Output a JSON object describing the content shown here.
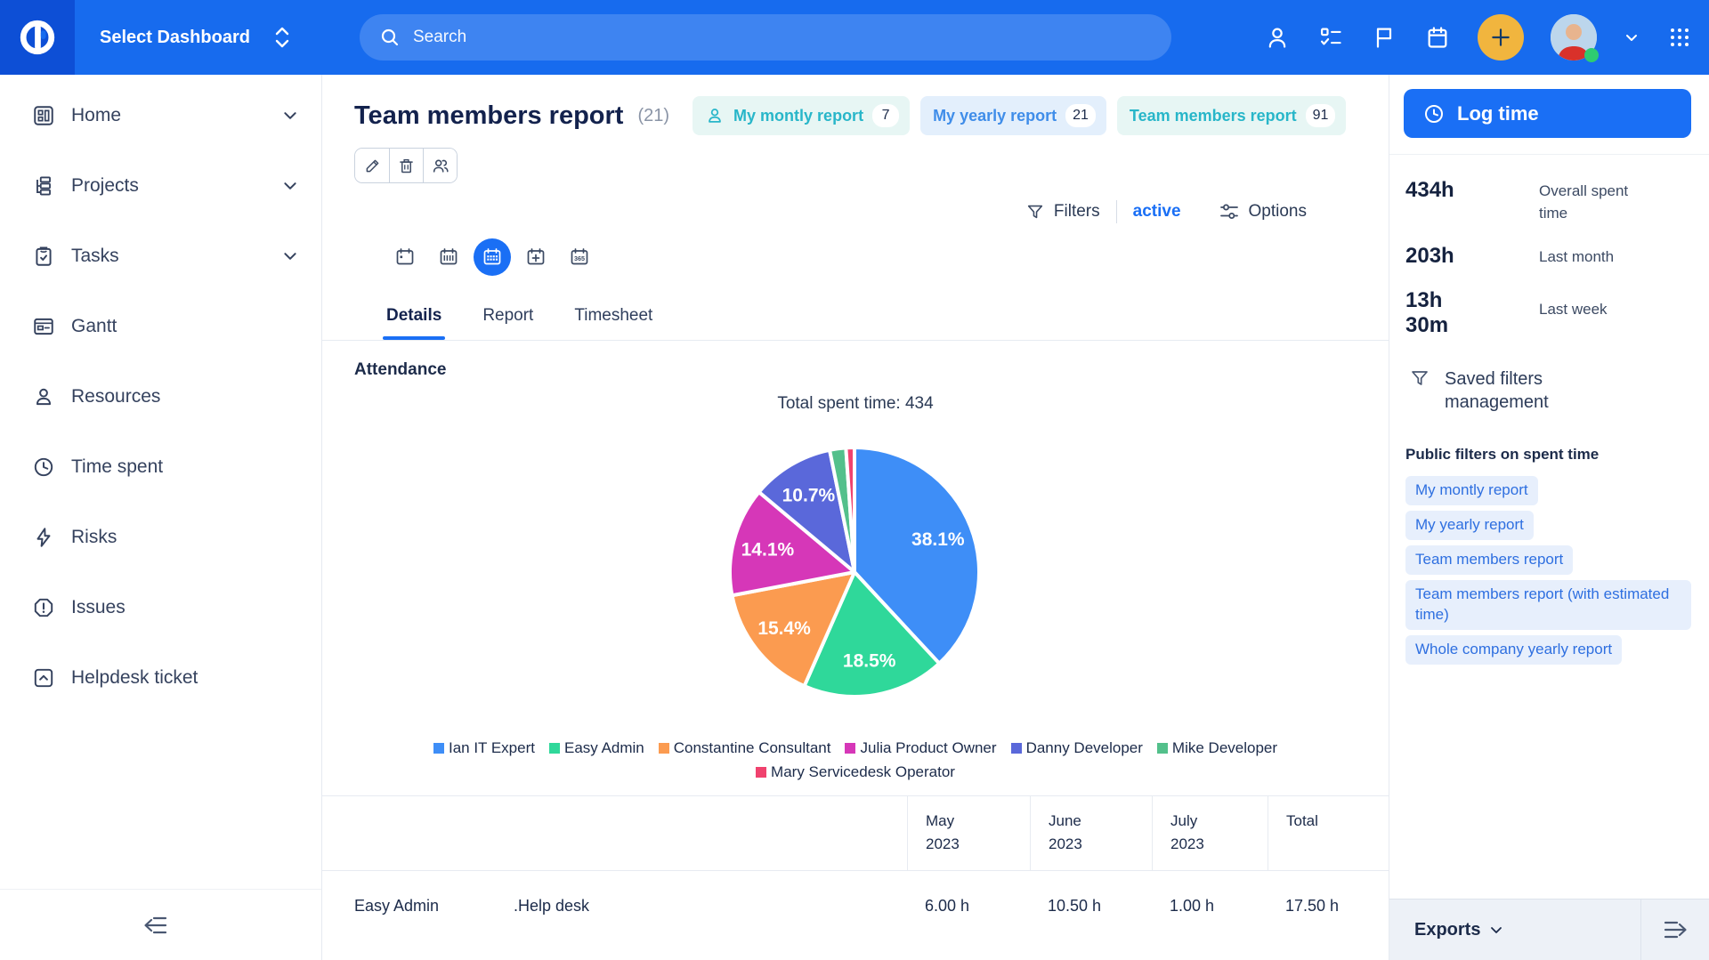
{
  "topbar": {
    "dashboard_selector": "Select Dashboard",
    "search_placeholder": "Search"
  },
  "colors": {
    "topbar_blue": "#176bee",
    "accent_blue": "#1a6ff5",
    "plus_yellow": "#f1b53e",
    "status_green": "#2ecc71",
    "teal_chip": "#28b6c9"
  },
  "sidebar": {
    "items": [
      {
        "label": "Home"
      },
      {
        "label": "Projects"
      },
      {
        "label": "Tasks"
      },
      {
        "label": "Gantt"
      },
      {
        "label": "Resources"
      },
      {
        "label": "Time spent"
      },
      {
        "label": "Risks"
      },
      {
        "label": "Issues"
      },
      {
        "label": "Helpdesk ticket"
      }
    ]
  },
  "page": {
    "title": "Team members report",
    "title_count": "(21)",
    "chips": [
      {
        "label": "My montly report",
        "count": "7"
      },
      {
        "label": "My yearly report",
        "count": "21"
      },
      {
        "label": "Team members report",
        "count": "91"
      }
    ],
    "filters_label": "Filters",
    "filters_state": "active",
    "options_label": "Options",
    "calendar_year_label": "365",
    "tabs": [
      {
        "label": "Details"
      },
      {
        "label": "Report"
      },
      {
        "label": "Timesheet"
      }
    ],
    "section_title": "Attendance",
    "chart_caption": "Total spent time: 434"
  },
  "chart_data": {
    "type": "pie",
    "title": "Total spent time: 434",
    "total_spent_time": 434,
    "legend_position": "bottom",
    "direction": "clockwise",
    "start_angle_deg": 0,
    "series": [
      {
        "name": "Ian IT Expert",
        "value": 38.1,
        "label": "38.1%",
        "color": "#3e8ef7"
      },
      {
        "name": "Easy Admin",
        "value": 18.5,
        "label": "18.5%",
        "color": "#2fd89a"
      },
      {
        "name": "Constantine Consultant",
        "value": 15.4,
        "label": "15.4%",
        "color": "#fb9b50"
      },
      {
        "name": "Julia Product Owner",
        "value": 14.1,
        "label": "14.1%",
        "color": "#d637b8"
      },
      {
        "name": "Danny Developer",
        "value": 10.7,
        "label": "10.7%",
        "color": "#5a68da"
      },
      {
        "name": "Mike Developer",
        "value": 2.1,
        "label": "",
        "color": "#53c08b"
      },
      {
        "name": "Mary Servicedesk Operator",
        "value": 1.1,
        "label": "",
        "color": "#f0426e"
      }
    ]
  },
  "table": {
    "columns": [
      "May 2023",
      "June 2023",
      "July 2023",
      "Total"
    ],
    "rows": [
      {
        "cells": [
          "Easy Admin",
          ".Help desk",
          "6.00 h",
          "10.50 h",
          "1.00 h",
          "17.50 h"
        ]
      }
    ]
  },
  "panel": {
    "log_time_label": "Log time",
    "stats": [
      {
        "value": "434h",
        "label": "Overall spent time"
      },
      {
        "value": "203h",
        "label": "Last month"
      },
      {
        "value": "13h 30m",
        "label": "Last week"
      }
    ],
    "saved_filters_label": "Saved filters management",
    "public_filters_title": "Public filters on spent time",
    "filter_links": [
      "My montly report",
      "My yearly report",
      "Team members report",
      "Team members report (with estimated time)",
      "Whole company yearly report"
    ],
    "exports_label": "Exports"
  }
}
